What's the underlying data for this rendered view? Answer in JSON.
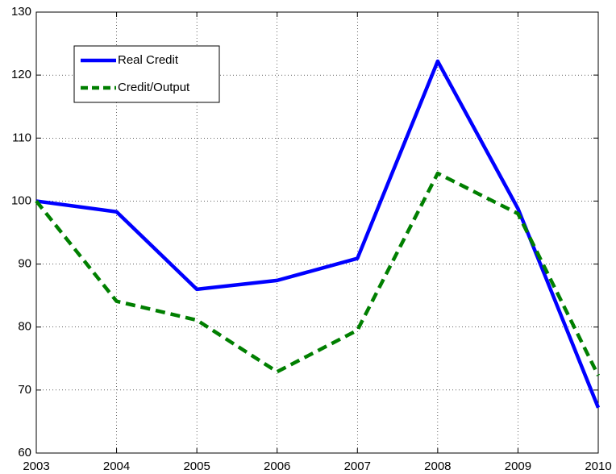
{
  "chart_data": {
    "type": "line",
    "x": [
      2003,
      2004,
      2005,
      2006,
      2007,
      2008,
      2009,
      2010
    ],
    "series": [
      {
        "name": "Real Credit",
        "color": "#0000ff",
        "style": "solid",
        "values": [
          100,
          98.3,
          86,
          87.4,
          90.9,
          122.2,
          98.8,
          67.2
        ]
      },
      {
        "name": "Credit/Output",
        "color": "#007f00",
        "style": "dashed",
        "values": [
          100,
          84.1,
          81.1,
          72.9,
          79.5,
          104.4,
          98,
          72.3
        ]
      }
    ],
    "xlim": [
      2003,
      2010
    ],
    "xticks": [
      2003,
      2004,
      2005,
      2006,
      2007,
      2008,
      2009,
      2010
    ],
    "ylim": [
      60,
      130
    ],
    "yticks": [
      60,
      70,
      80,
      90,
      100,
      110,
      120,
      130
    ],
    "grid": true,
    "legend": "upper left"
  }
}
